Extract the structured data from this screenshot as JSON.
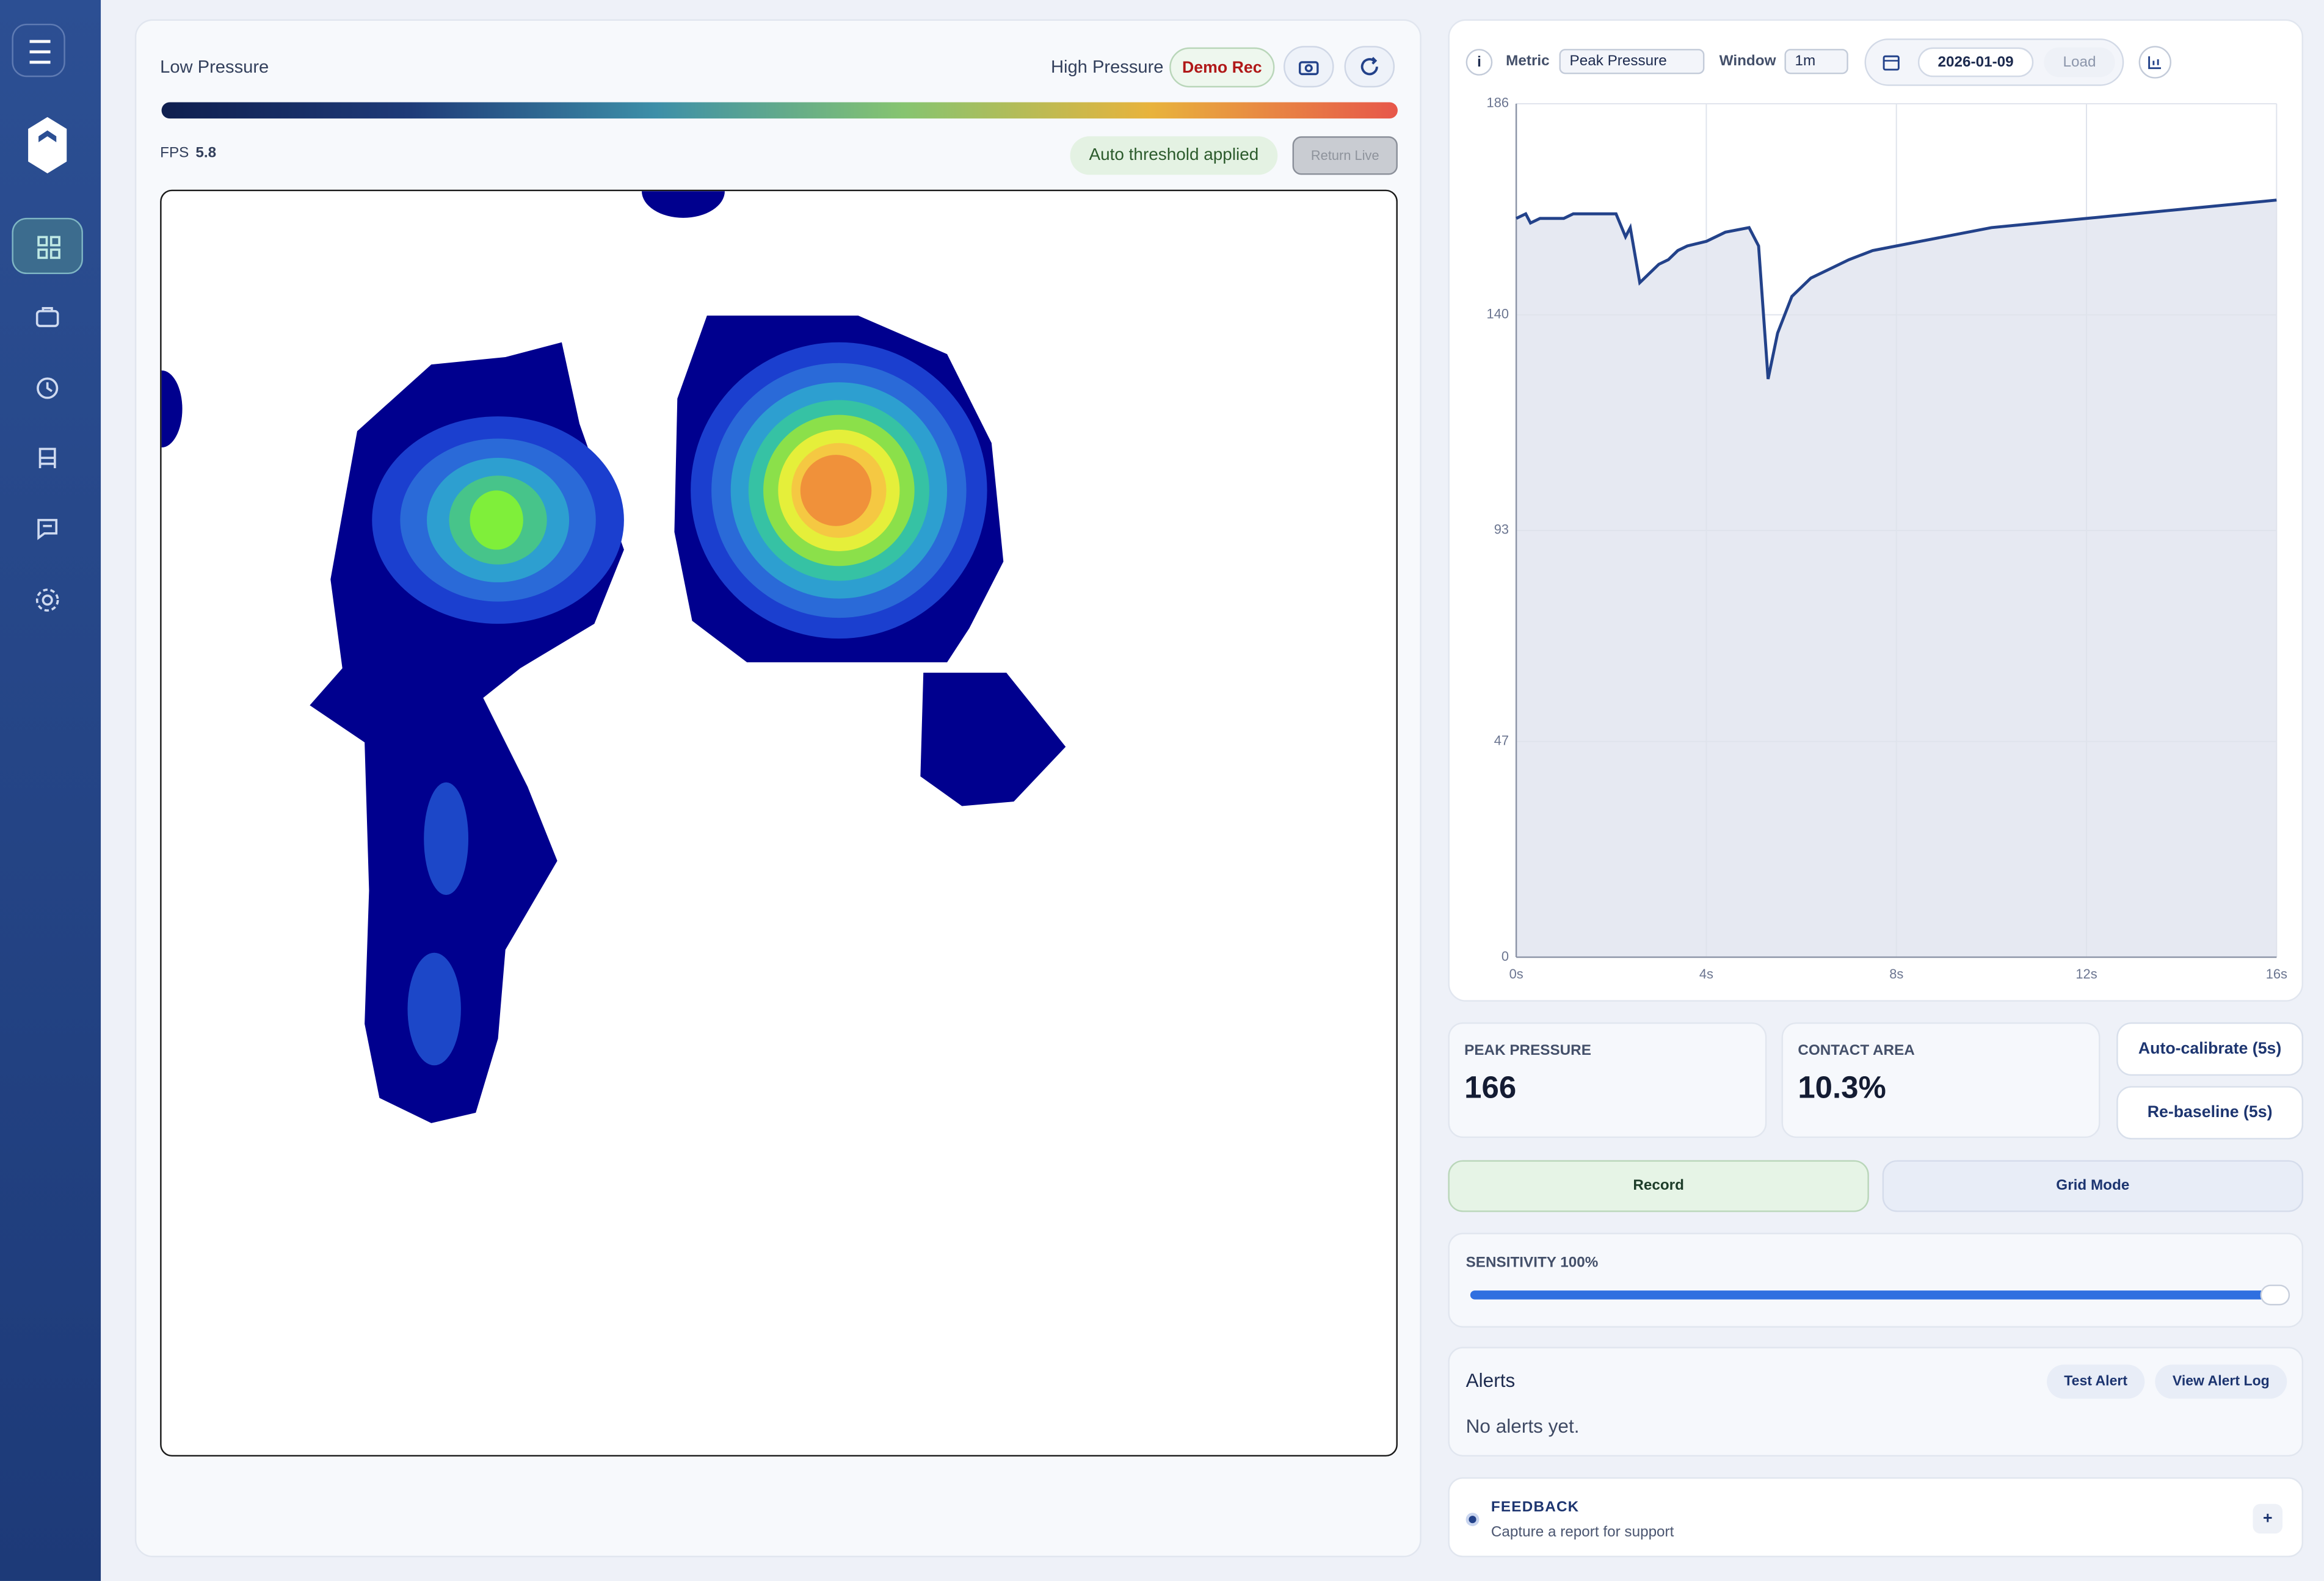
{
  "heatmap": {
    "legend_low": "Low Pressure",
    "legend_high": "High Pressure",
    "demo_button": "Demo Rec",
    "fps_label": "FPS",
    "fps_value": "5.8",
    "threshold_badge": "Auto threshold applied",
    "return_button": "Return Live"
  },
  "chart_controls": {
    "metric_label": "Metric",
    "metric_value": "Peak Pressure",
    "window_label": "Window",
    "window_value": "1m",
    "date": "2026-01-09",
    "load_button": "Load"
  },
  "chart_data": {
    "type": "line",
    "x": [
      0,
      0.2,
      0.3,
      0.5,
      1.0,
      1.2,
      2.1,
      2.3,
      2.4,
      2.6,
      2.8,
      3.0,
      3.2,
      3.4,
      3.6,
      4.0,
      4.4,
      4.9,
      5.1,
      5.3,
      5.5,
      5.8,
      6.2,
      6.6,
      7.0,
      7.5,
      8.0,
      8.5,
      9.0,
      10.0,
      11.0,
      12.0,
      13.0,
      14.0,
      15.0,
      16.0
    ],
    "values": [
      161,
      162,
      160,
      161,
      161,
      162,
      162,
      157,
      159,
      147,
      149,
      151,
      152,
      154,
      155,
      156,
      158,
      159,
      155,
      126,
      136,
      144,
      148,
      150,
      152,
      154,
      155,
      156,
      157,
      159,
      160,
      161,
      162,
      163,
      164,
      165
    ],
    "color": "#23428a",
    "xlim": [
      0,
      16
    ],
    "xticks": [
      {
        "value": 0,
        "label": "0s"
      },
      {
        "value": 4,
        "label": "4s"
      },
      {
        "value": 8,
        "label": "8s"
      },
      {
        "value": 12,
        "label": "12s"
      },
      {
        "value": 16,
        "label": "16s"
      }
    ],
    "ylim": [
      0,
      186
    ],
    "yticks": [
      0,
      47,
      93,
      140,
      186
    ],
    "grid": true
  },
  "stats": [
    {
      "label": "PEAK PRESSURE",
      "value": "166"
    },
    {
      "label": "CONTACT AREA",
      "value": "10.3%"
    }
  ],
  "actions": {
    "auto_calibrate": "Auto-calibrate (5s)",
    "rebaseline": "Re-baseline (5s)",
    "record": "Record",
    "grid_mode": "Grid Mode"
  },
  "sensitivity": {
    "label": "SENSITIVITY 100%"
  },
  "alerts": {
    "title": "Alerts",
    "test_button": "Test Alert",
    "log_button": "View Alert Log",
    "empty": "No alerts yet."
  },
  "feedback": {
    "title": "FEEDBACK",
    "subtitle": "Capture a report for support",
    "button": "+"
  }
}
